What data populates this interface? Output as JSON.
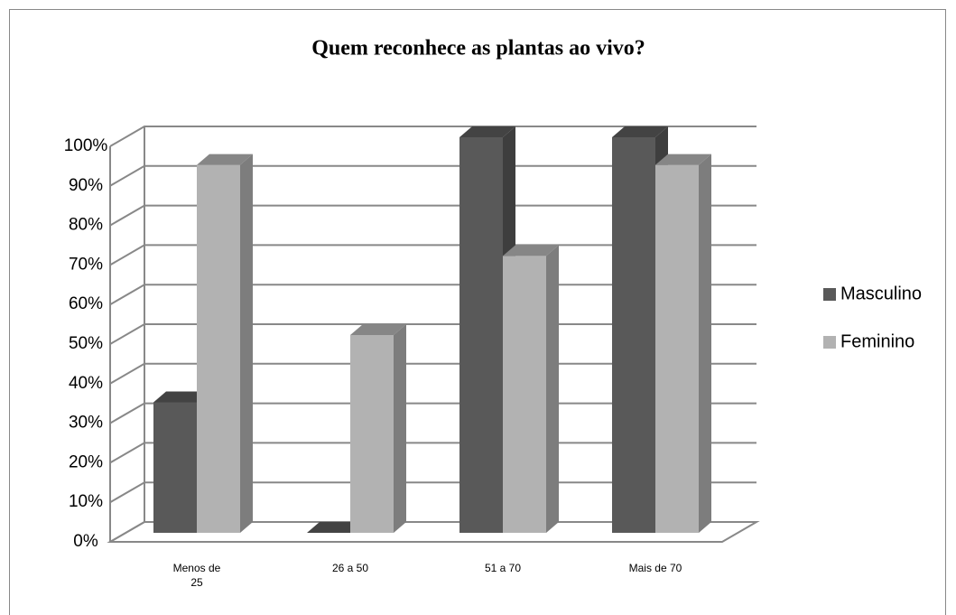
{
  "chart_data": {
    "type": "bar3d",
    "title": "Quem reconhece as plantas ao vivo?",
    "categories": [
      "Menos de\n25",
      "26 a 50",
      "51 a 70",
      "Mais de 70"
    ],
    "series": [
      {
        "name": "Masculino",
        "color": "#595959",
        "values": [
          33,
          0,
          100,
          100
        ]
      },
      {
        "name": "Feminino",
        "color": "#b2b2b2",
        "values": [
          93,
          50,
          70,
          93
        ]
      }
    ],
    "ylim": [
      0,
      100
    ],
    "yticks": [
      {
        "value": 0,
        "label": "0%"
      },
      {
        "value": 10,
        "label": "10%"
      },
      {
        "value": 20,
        "label": "20%"
      },
      {
        "value": 30,
        "label": "30%"
      },
      {
        "value": 40,
        "label": "40%"
      },
      {
        "value": 50,
        "label": "50%"
      },
      {
        "value": 60,
        "label": "60%"
      },
      {
        "value": 70,
        "label": "70%"
      },
      {
        "value": 80,
        "label": "80%"
      },
      {
        "value": 90,
        "label": "90%"
      },
      {
        "value": 100,
        "label": "100%"
      }
    ],
    "grid": true,
    "legend": "right"
  }
}
